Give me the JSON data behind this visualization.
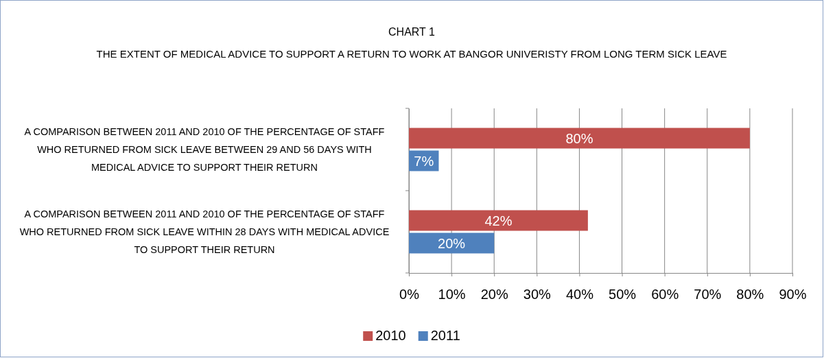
{
  "chart_data": {
    "type": "bar",
    "orientation": "horizontal",
    "title": "CHART 1",
    "subtitle": "THE EXTENT OF MEDICAL ADVICE TO SUPPORT A RETURN TO WORK AT BANGOR UNIVERISTY FROM LONG TERM SICK LEAVE",
    "categories": [
      "A COMPARISON BETWEEN 2011 AND 2010 OF THE PERCENTAGE OF STAFF WHO RETURNED FROM SICK LEAVE BETWEEN 29 AND 56 DAYS WITH MEDICAL ADVICE TO SUPPORT THEIR RETURN",
      "A COMPARISON BETWEEN 2011 AND 2010 OF THE PERCENTAGE OF STAFF WHO RETURNED FROM SICK LEAVE WITHIN 28 DAYS WITH MEDICAL ADVICE TO SUPPORT THEIR RETURN"
    ],
    "series": [
      {
        "name": "2010",
        "color": "#c0504d",
        "values": [
          80,
          42
        ],
        "value_labels": [
          "80%",
          "42%"
        ]
      },
      {
        "name": "2011",
        "color": "#4f81bd",
        "values": [
          7,
          20
        ],
        "value_labels": [
          "7%",
          "20%"
        ]
      }
    ],
    "xlim": [
      0,
      90
    ],
    "xticks": [
      {
        "value": 0,
        "label": "0%"
      },
      {
        "value": 10,
        "label": "10%"
      },
      {
        "value": 20,
        "label": "20%"
      },
      {
        "value": 30,
        "label": "30%"
      },
      {
        "value": 40,
        "label": "40%"
      },
      {
        "value": 50,
        "label": "50%"
      },
      {
        "value": 60,
        "label": "60%"
      },
      {
        "value": 70,
        "label": "70%"
      },
      {
        "value": 80,
        "label": "80%"
      },
      {
        "value": 90,
        "label": "90%"
      }
    ],
    "grid": "x",
    "legend": "bottom"
  }
}
